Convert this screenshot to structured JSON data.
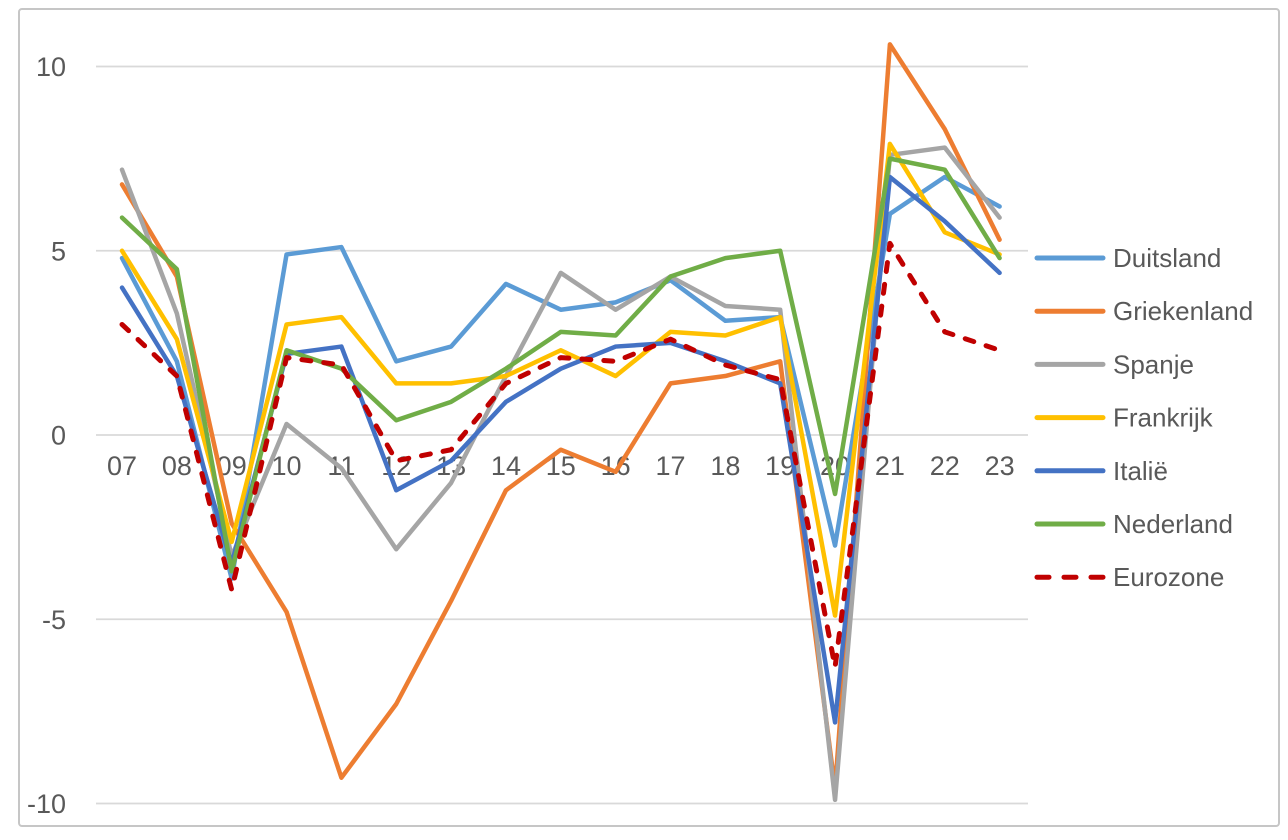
{
  "window": {
    "background_color": "#FFFFFF",
    "frame_border_color": "#C6C6C6"
  },
  "chart_data": {
    "type": "line",
    "title": "",
    "xlabel": "",
    "ylabel": "",
    "grid": true,
    "gridline_color": "#D9D9D9",
    "text_color": "#595959",
    "legend_position": "right",
    "categories": [
      "07",
      "08",
      "09",
      "10",
      "11",
      "12",
      "13",
      "14",
      "15",
      "16",
      "17",
      "18",
      "19",
      "20",
      "21",
      "22",
      "23"
    ],
    "y_axis": {
      "min": -10,
      "max": 10,
      "step": 5,
      "ticks": [
        10,
        5,
        0,
        -5,
        -10
      ],
      "tick_labels": [
        "10",
        "5",
        "0",
        "-5",
        "-10"
      ]
    },
    "series": [
      {
        "name": "Duitsland",
        "color": "#5B9BD5",
        "dash": false,
        "values": [
          4.8,
          2.0,
          -3.9,
          4.9,
          5.1,
          2.0,
          2.4,
          4.1,
          3.4,
          3.6,
          4.2,
          3.1,
          3.2,
          -3.0,
          6.0,
          7.0,
          6.2
        ]
      },
      {
        "name": "Griekenland",
        "color": "#ED7D31",
        "dash": false,
        "values": [
          6.8,
          4.3,
          -2.4,
          -4.8,
          -9.3,
          -7.3,
          -4.5,
          -1.5,
          -0.4,
          -1.0,
          1.4,
          1.6,
          2.0,
          -9.6,
          10.6,
          8.3,
          5.3
        ]
      },
      {
        "name": "Spanje",
        "color": "#A5A5A5",
        "dash": false,
        "values": [
          7.2,
          3.3,
          -3.3,
          0.3,
          -0.9,
          -3.1,
          -1.3,
          1.6,
          4.4,
          3.4,
          4.3,
          3.5,
          3.4,
          -9.9,
          7.6,
          7.8,
          5.9
        ]
      },
      {
        "name": "Frankrijk",
        "color": "#FFC000",
        "dash": false,
        "values": [
          5.0,
          2.6,
          -2.9,
          3.0,
          3.2,
          1.4,
          1.4,
          1.6,
          2.3,
          1.6,
          2.8,
          2.7,
          3.2,
          -4.9,
          7.9,
          5.5,
          4.9
        ]
      },
      {
        "name": "Italië",
        "color": "#4472C4",
        "dash": false,
        "values": [
          4.0,
          1.6,
          -3.5,
          2.2,
          2.4,
          -1.5,
          -0.7,
          0.9,
          1.8,
          2.4,
          2.5,
          2.0,
          1.4,
          -7.8,
          7.0,
          5.8,
          4.4
        ]
      },
      {
        "name": "Nederland",
        "color": "#70AD47",
        "dash": false,
        "values": [
          5.9,
          4.5,
          -3.7,
          2.3,
          1.8,
          0.4,
          0.9,
          1.8,
          2.8,
          2.7,
          4.3,
          4.8,
          5.0,
          -1.6,
          7.5,
          7.2,
          4.8
        ]
      },
      {
        "name": "Eurozone",
        "color": "#C00000",
        "dash": true,
        "values": [
          3.0,
          1.6,
          -4.2,
          2.1,
          1.9,
          -0.7,
          -0.4,
          1.4,
          2.1,
          2.0,
          2.6,
          1.9,
          1.5,
          -6.3,
          5.2,
          2.8,
          2.3
        ]
      }
    ]
  }
}
